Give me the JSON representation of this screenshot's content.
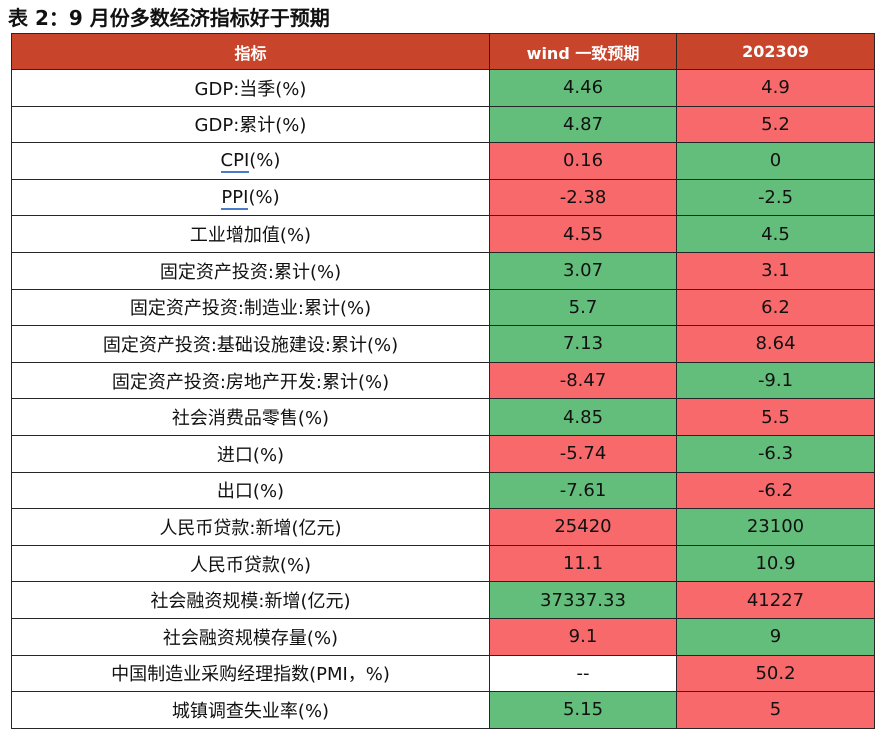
{
  "title": "表 2：9 月份多数经济指标好于预期",
  "colors": {
    "header_bg": "#c8442a",
    "green": "#63be7b",
    "red": "#f8696b",
    "white": "#ffffff"
  },
  "table": {
    "headers": [
      "指标",
      "wind 一致预期",
      "202309"
    ],
    "rows": [
      {
        "label": "GDP:当季(%)",
        "expected": "4.46",
        "actual": "4.9",
        "expected_color": "green",
        "actual_color": "red"
      },
      {
        "label": "GDP:累计(%)",
        "expected": "4.87",
        "actual": "5.2",
        "expected_color": "green",
        "actual_color": "red"
      },
      {
        "label_ul": "CPI",
        "label_rest": "(%)",
        "expected": "0.16",
        "actual": "0",
        "expected_color": "red",
        "actual_color": "green"
      },
      {
        "label_ul": "PPI",
        "label_rest": "(%)",
        "expected": "-2.38",
        "actual": "-2.5",
        "expected_color": "red",
        "actual_color": "green"
      },
      {
        "label": "工业增加值(%)",
        "expected": "4.55",
        "actual": "4.5",
        "expected_color": "red",
        "actual_color": "green"
      },
      {
        "label": "固定资产投资:累计(%)",
        "expected": "3.07",
        "actual": "3.1",
        "expected_color": "green",
        "actual_color": "red"
      },
      {
        "label": "固定资产投资:制造业:累计(%)",
        "expected": "5.7",
        "actual": "6.2",
        "expected_color": "green",
        "actual_color": "red"
      },
      {
        "label": "固定资产投资:基础设施建设:累计(%)",
        "expected": "7.13",
        "actual": "8.64",
        "expected_color": "green",
        "actual_color": "red"
      },
      {
        "label": "固定资产投资:房地产开发:累计(%)",
        "expected": "-8.47",
        "actual": "-9.1",
        "expected_color": "red",
        "actual_color": "green"
      },
      {
        "label": "社会消费品零售(%)",
        "expected": "4.85",
        "actual": "5.5",
        "expected_color": "green",
        "actual_color": "red"
      },
      {
        "label": "进口(%)",
        "expected": "-5.74",
        "actual": "-6.3",
        "expected_color": "red",
        "actual_color": "green"
      },
      {
        "label": "出口(%)",
        "expected": "-7.61",
        "actual": "-6.2",
        "expected_color": "green",
        "actual_color": "red"
      },
      {
        "label": "人民币贷款:新增(亿元)",
        "expected": "25420",
        "actual": "23100",
        "expected_color": "red",
        "actual_color": "green"
      },
      {
        "label": "人民币贷款(%)",
        "expected": "11.1",
        "actual": "10.9",
        "expected_color": "red",
        "actual_color": "green"
      },
      {
        "label": "社会融资规模:新增(亿元)",
        "expected": "37337.33",
        "actual": "41227",
        "expected_color": "green",
        "actual_color": "red"
      },
      {
        "label": "社会融资规模存量(%)",
        "expected": "9.1",
        "actual": "9",
        "expected_color": "red",
        "actual_color": "green"
      },
      {
        "label": "中国制造业采购经理指数(PMI，%)",
        "expected": "--",
        "actual": "50.2",
        "expected_color": "white",
        "actual_color": "red"
      },
      {
        "label": "城镇调查失业率(%)",
        "expected": "5.15",
        "actual": "5",
        "expected_color": "green",
        "actual_color": "red"
      }
    ]
  }
}
